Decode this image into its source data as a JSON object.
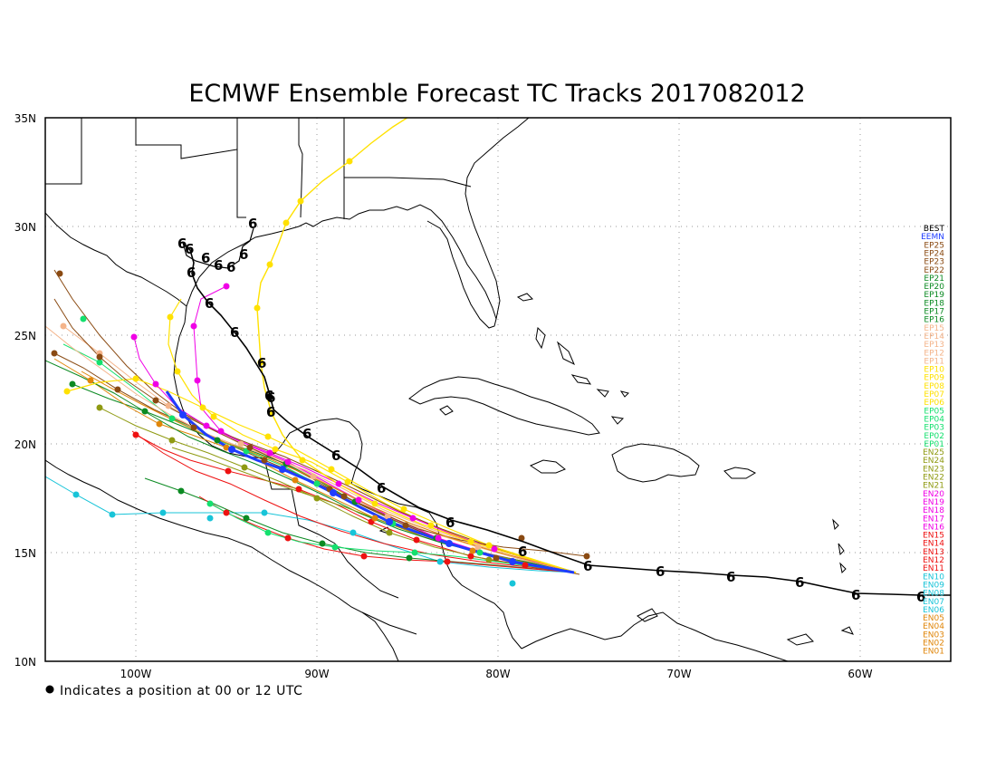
{
  "title": "ECMWF Ensemble Forecast TC Tracks 2017082012",
  "footnote": "Indicates a position at 00 or 12 UTC",
  "axes": {
    "lon_labels": [
      "100W",
      "90W",
      "80W",
      "70W",
      "60W"
    ],
    "lat_labels": [
      "35N",
      "30N",
      "25N",
      "20N",
      "15N",
      "10N"
    ]
  },
  "colors": {
    "best": "#000000",
    "eemn": "#1f3dff",
    "ep_warm": "#8a4a12",
    "ep_green": "#0b8a22",
    "ep_peach": "#f4b48a",
    "ep_yellow": "#ffe100",
    "ep_mint": "#14e06e",
    "en_olive": "#8f9a12",
    "en_magenta": "#f000e6",
    "en_red": "#ee1111",
    "en_cyan": "#18c4d8",
    "en_orange": "#e0860a"
  },
  "legend": [
    {
      "label": "BEST",
      "color": "#000000"
    },
    {
      "label": "EEMN",
      "color": "#1f3dff"
    },
    {
      "label": "EP25",
      "color": "#8a4a12"
    },
    {
      "label": "EP24",
      "color": "#8a4a12"
    },
    {
      "label": "EP23",
      "color": "#8a4a12"
    },
    {
      "label": "EP22",
      "color": "#8a4a12"
    },
    {
      "label": "EP21",
      "color": "#0b8a22"
    },
    {
      "label": "EP20",
      "color": "#0b8a22"
    },
    {
      "label": "EP19",
      "color": "#0b8a22"
    },
    {
      "label": "EP18",
      "color": "#0b8a22"
    },
    {
      "label": "EP17",
      "color": "#0b8a22"
    },
    {
      "label": "EP16",
      "color": "#0b8a22"
    },
    {
      "label": "EP15",
      "color": "#f4b48a"
    },
    {
      "label": "EP14",
      "color": "#f4b48a"
    },
    {
      "label": "EP13",
      "color": "#f4b48a"
    },
    {
      "label": "EP12",
      "color": "#f4b48a"
    },
    {
      "label": "EP11",
      "color": "#f4b48a"
    },
    {
      "label": "EP10",
      "color": "#ffe100"
    },
    {
      "label": "EP09",
      "color": "#ffe100"
    },
    {
      "label": "EP08",
      "color": "#ffe100"
    },
    {
      "label": "EP07",
      "color": "#ffe100"
    },
    {
      "label": "EP06",
      "color": "#ffe100"
    },
    {
      "label": "EP05",
      "color": "#14e06e"
    },
    {
      "label": "EP04",
      "color": "#14e06e"
    },
    {
      "label": "EP03",
      "color": "#14e06e"
    },
    {
      "label": "EP02",
      "color": "#14e06e"
    },
    {
      "label": "EP01",
      "color": "#14e06e"
    },
    {
      "label": "EN25",
      "color": "#8f9a12"
    },
    {
      "label": "EN24",
      "color": "#8f9a12"
    },
    {
      "label": "EN23",
      "color": "#8f9a12"
    },
    {
      "label": "EN22",
      "color": "#8f9a12"
    },
    {
      "label": "EN21",
      "color": "#8f9a12"
    },
    {
      "label": "EN20",
      "color": "#f000e6"
    },
    {
      "label": "EN19",
      "color": "#f000e6"
    },
    {
      "label": "EN18",
      "color": "#f000e6"
    },
    {
      "label": "EN17",
      "color": "#f000e6"
    },
    {
      "label": "EN16",
      "color": "#f000e6"
    },
    {
      "label": "EN15",
      "color": "#ee1111"
    },
    {
      "label": "EN14",
      "color": "#ee1111"
    },
    {
      "label": "EN13",
      "color": "#ee1111"
    },
    {
      "label": "EN12",
      "color": "#ee1111"
    },
    {
      "label": "EN11",
      "color": "#ee1111"
    },
    {
      "label": "EN10",
      "color": "#18c4d8"
    },
    {
      "label": "EN09",
      "color": "#18c4d8"
    },
    {
      "label": "EN08",
      "color": "#18c4d8"
    },
    {
      "label": "EN07",
      "color": "#18c4d8"
    },
    {
      "label": "EN06",
      "color": "#18c4d8"
    },
    {
      "label": "EN05",
      "color": "#e0860a"
    },
    {
      "label": "EN04",
      "color": "#e0860a"
    },
    {
      "label": "EN03",
      "color": "#e0860a"
    },
    {
      "label": "EN02",
      "color": "#e0860a"
    },
    {
      "label": "EN01",
      "color": "#e0860a"
    }
  ]
}
